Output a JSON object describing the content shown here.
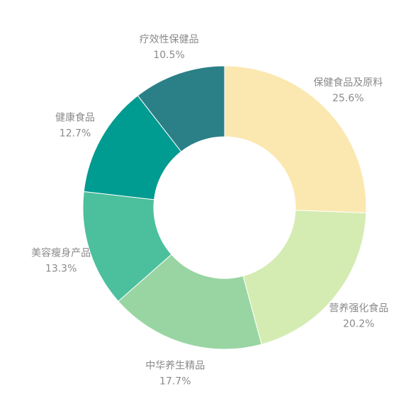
{
  "chart_data": {
    "type": "pie",
    "donut": true,
    "title": "",
    "categories": [
      "保健食品及原料",
      "营养强化食品",
      "中华养生精品",
      "美容瘦身产品",
      "健康食品",
      "疗效性保健品"
    ],
    "values": [
      25.6,
      20.2,
      17.7,
      13.3,
      12.7,
      10.5
    ],
    "value_labels": [
      "25.6%",
      "20.2%",
      "17.7%",
      "13.3%",
      "12.7%",
      "10.5%"
    ],
    "colors": [
      "#fbe8b0",
      "#d4ecb2",
      "#98d5a2",
      "#4cbf9c",
      "#009b91",
      "#2b8087"
    ],
    "unit": "%",
    "legend": "none"
  }
}
